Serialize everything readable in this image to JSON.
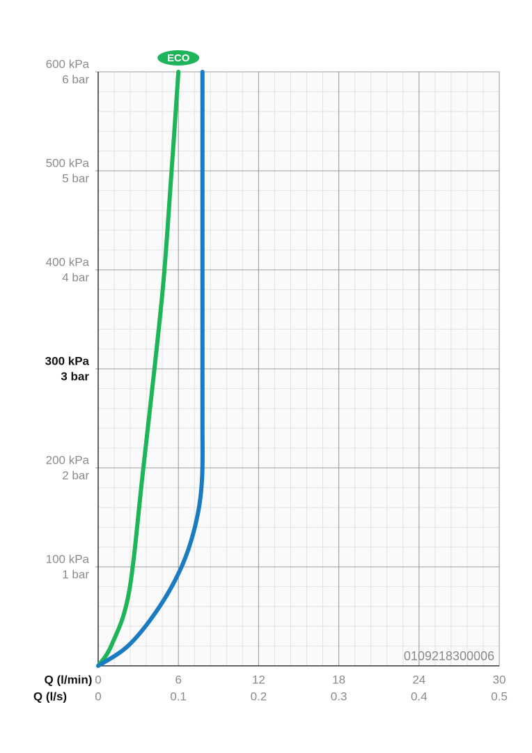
{
  "chart_data": {
    "type": "line",
    "xlabel": "Q (l/min)",
    "x2label": "Q (l/s)",
    "xlim": [
      0,
      30
    ],
    "xticks": [
      0,
      6,
      12,
      18,
      24,
      30
    ],
    "x2lim": [
      0,
      0.5
    ],
    "x2ticks": [
      0,
      0.1,
      0.2,
      0.3,
      0.4,
      0.5
    ],
    "ylim": [
      0,
      600
    ],
    "yticks": [
      {
        "value": 100,
        "label": "100 kPa"
      },
      {
        "value": 200,
        "label": "200 kPa"
      },
      {
        "value": 300,
        "label": "300 kPa"
      },
      {
        "value": 400,
        "label": "400 kPa"
      },
      {
        "value": 500,
        "label": "500 kPa"
      },
      {
        "value": 600,
        "label": "600 kPa"
      }
    ],
    "y2lim": [
      0,
      6
    ],
    "y2ticks": [
      {
        "value": 1,
        "label": "1 bar"
      },
      {
        "value": 2,
        "label": "2 bar"
      },
      {
        "value": 3,
        "label": "3 bar"
      },
      {
        "value": 4,
        "label": "4 bar"
      },
      {
        "value": 5,
        "label": "5 bar"
      },
      {
        "value": 6,
        "label": "6 bar"
      }
    ],
    "emphasized_ytick": 300,
    "grid": true,
    "minor_grid": {
      "x": 1.2,
      "y": 20
    },
    "code": "0109218300006",
    "series": [
      {
        "name": "ECO",
        "color": "#1db45a",
        "x": [
          0,
          1,
          2.3,
          3.33,
          4.2,
          4.9,
          5.47,
          6
        ],
        "values": [
          0,
          21,
          74,
          194,
          299,
          391,
          496,
          600
        ]
      },
      {
        "color": "#1b7bc0",
        "x": [
          0,
          2.3,
          4.6,
          6.3,
          7.3,
          7.76,
          7.8,
          7.8,
          7.8
        ],
        "values": [
          0,
          21,
          60,
          102,
          144,
          187,
          250,
          391,
          600
        ]
      }
    ]
  }
}
